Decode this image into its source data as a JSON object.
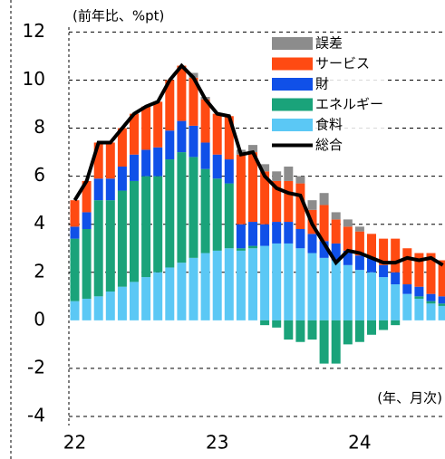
{
  "chart_data": {
    "type": "stacked_bar_line",
    "ylabel": "(前年比、%pt)",
    "annotation": "(年、月次)",
    "categories": [
      "22",
      null,
      null,
      null,
      null,
      null,
      null,
      null,
      null,
      null,
      null,
      null,
      "23",
      null,
      null,
      null,
      null,
      null,
      null,
      null,
      null,
      null,
      null,
      null,
      "24",
      null,
      null,
      null,
      null,
      null,
      null,
      null
    ],
    "series": [
      {
        "name": "食料",
        "color": "#5bc8f5",
        "values": [
          0.8,
          0.9,
          1.0,
          1.2,
          1.4,
          1.6,
          1.8,
          2.0,
          2.2,
          2.4,
          2.6,
          2.8,
          2.9,
          3.0,
          2.9,
          3.0,
          3.1,
          3.2,
          3.2,
          3.0,
          2.8,
          2.6,
          2.5,
          2.3,
          2.1,
          2.0,
          1.8,
          1.5,
          1.1,
          0.9,
          0.7,
          0.6
        ]
      },
      {
        "name": "エネルギー",
        "color": "#1aa37a",
        "values": [
          2.6,
          2.9,
          4.0,
          3.8,
          4.0,
          4.2,
          4.2,
          4.0,
          4.5,
          4.6,
          4.2,
          3.5,
          3.0,
          2.7,
          0.1,
          0.1,
          -0.2,
          -0.3,
          -0.8,
          -0.9,
          -0.8,
          -1.8,
          -1.8,
          -1.0,
          -0.9,
          -0.6,
          -0.4,
          -0.2,
          0,
          0.1,
          0.1,
          0.1
        ]
      },
      {
        "name": "財",
        "color": "#1050e8",
        "values": [
          0.5,
          0.7,
          0.9,
          0.9,
          1.0,
          1.1,
          1.1,
          1.2,
          1.2,
          1.3,
          1.3,
          1.1,
          1.0,
          1.0,
          1.0,
          1.0,
          0.9,
          0.9,
          0.9,
          0.8,
          0.8,
          0.7,
          0.7,
          0.6,
          0.6,
          0.6,
          0.5,
          0.5,
          0.4,
          0.4,
          0.3,
          0.3
        ]
      },
      {
        "name": "サービス",
        "color": "#ff4a12",
        "values": [
          1.1,
          1.3,
          1.5,
          1.5,
          1.6,
          1.7,
          1.8,
          1.9,
          2.1,
          2.3,
          2.0,
          1.8,
          1.7,
          1.8,
          2.9,
          2.9,
          2.2,
          1.7,
          1.7,
          1.9,
          1.0,
          1.5,
          1.0,
          1.0,
          1.0,
          1.0,
          1.1,
          1.4,
          1.5,
          1.4,
          1.7,
          1.5
        ]
      },
      {
        "name": "誤差",
        "color": "#8c8c8c",
        "values": [
          0,
          0,
          0,
          0,
          0,
          0,
          0,
          0,
          0,
          0,
          0.2,
          0.1,
          0,
          0,
          0.2,
          0.3,
          0.3,
          0.4,
          0.6,
          0.3,
          0.4,
          0.5,
          0.3,
          0.3,
          0.2,
          0,
          0,
          0,
          0,
          0,
          0,
          0
        ]
      }
    ],
    "line": {
      "name": "総合",
      "color": "#000000",
      "values": [
        5.0,
        5.8,
        7.4,
        7.4,
        8.0,
        8.6,
        8.9,
        9.1,
        10.0,
        10.6,
        10.1,
        9.2,
        8.6,
        8.5,
        6.9,
        7.0,
        6.0,
        5.5,
        5.3,
        5.2,
        4.0,
        3.2,
        2.4,
        2.9,
        2.8,
        2.6,
        2.4,
        2.4,
        2.6,
        2.5,
        2.6,
        2.3
      ]
    },
    "ylim": [
      -4,
      12
    ],
    "yticks": [
      -4,
      -2,
      0,
      2,
      4,
      6,
      8,
      10,
      12
    ],
    "grid": true
  }
}
